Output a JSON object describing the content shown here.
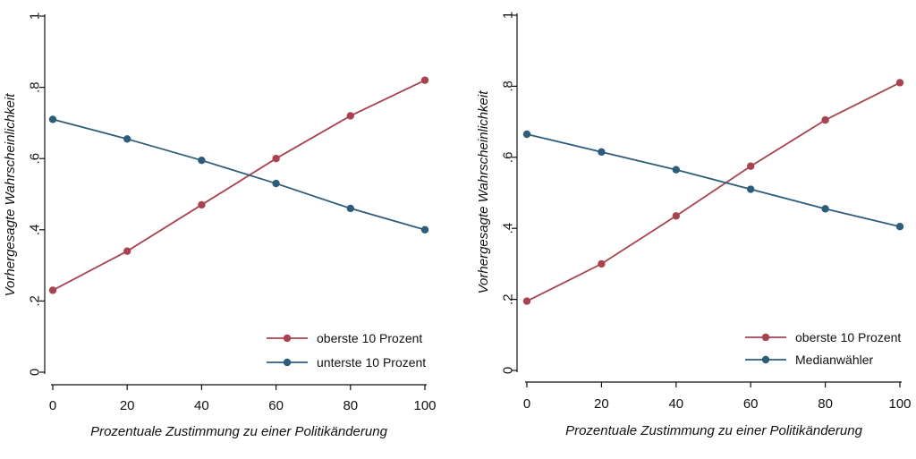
{
  "series_colors": {
    "red": "#a8434f",
    "blue": "#2d5d7b"
  },
  "chart_data": [
    {
      "type": "line",
      "xlabel": "Prozentuale Zustimmung zu einer Politikänderung",
      "ylabel": "Vorhergesagte Wahrscheinlichkeit",
      "x": [
        0,
        20,
        40,
        60,
        80,
        100
      ],
      "xticks": [
        0,
        20,
        40,
        60,
        80,
        100
      ],
      "xtick_labels": [
        "0",
        "20",
        "40",
        "60",
        "80",
        "100"
      ],
      "yticks": [
        0,
        0.2,
        0.4,
        0.6,
        0.8,
        1
      ],
      "ytick_labels": [
        "0",
        ".2",
        ".4",
        ".6",
        ".8",
        "1"
      ],
      "xlim": [
        0,
        100
      ],
      "ylim": [
        0,
        1
      ],
      "grid": false,
      "legend_position": "bottom-right",
      "series": [
        {
          "name": "oberste 10 Prozent",
          "color": "#a8434f",
          "values": [
            0.23,
            0.34,
            0.47,
            0.6,
            0.72,
            0.82
          ]
        },
        {
          "name": "unterste 10 Prozent",
          "color": "#2d5d7b",
          "values": [
            0.71,
            0.655,
            0.595,
            0.53,
            0.46,
            0.4
          ]
        }
      ]
    },
    {
      "type": "line",
      "xlabel": "Prozentuale Zustimmung zu einer Politikänderung",
      "ylabel": "Vorhergesagte Wahrscheinlichkeit",
      "x": [
        0,
        20,
        40,
        60,
        80,
        100
      ],
      "xticks": [
        0,
        20,
        40,
        60,
        80,
        100
      ],
      "xtick_labels": [
        "0",
        "20",
        "40",
        "60",
        "80",
        "100"
      ],
      "yticks": [
        0,
        0.2,
        0.4,
        0.6,
        0.8,
        1
      ],
      "ytick_labels": [
        "0",
        ".2",
        ".4",
        ".6",
        ".8",
        "1"
      ],
      "xlim": [
        0,
        100
      ],
      "ylim": [
        0,
        1
      ],
      "grid": false,
      "legend_position": "bottom-right",
      "series": [
        {
          "name": "oberste 10 Prozent",
          "color": "#a8434f",
          "values": [
            0.195,
            0.3,
            0.435,
            0.575,
            0.705,
            0.81
          ]
        },
        {
          "name": "Medianwähler",
          "color": "#2d5d7b",
          "values": [
            0.665,
            0.615,
            0.565,
            0.51,
            0.455,
            0.405
          ]
        }
      ]
    }
  ]
}
